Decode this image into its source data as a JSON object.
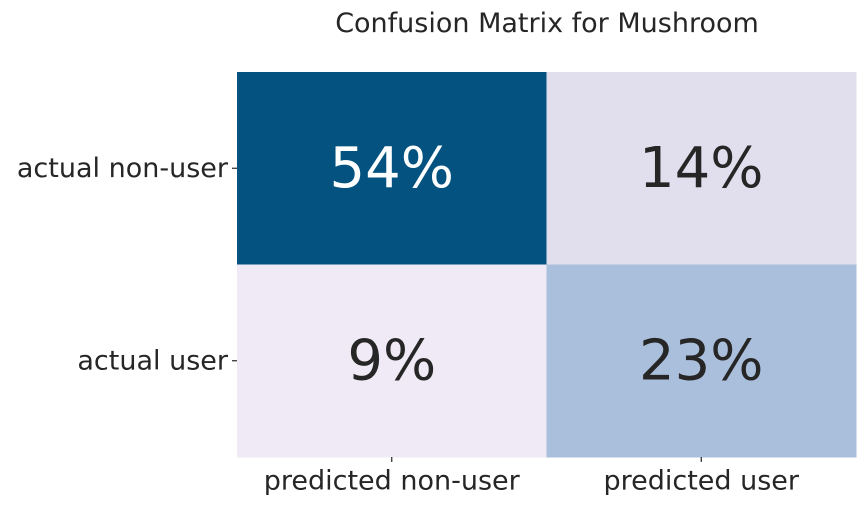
{
  "chart_data": {
    "type": "heatmap",
    "title": "Confusion Matrix for Mushroom",
    "row_labels": [
      "actual non-user",
      "actual user"
    ],
    "col_labels": [
      "predicted non-user",
      "predicted user"
    ],
    "values": [
      [
        54,
        14
      ],
      [
        9,
        23
      ]
    ],
    "cell_text": [
      [
        "54%",
        "14%"
      ],
      [
        "9%",
        "23%"
      ]
    ],
    "unit": "%",
    "colormap": "PuBu",
    "cell_colors": [
      [
        "#03527f",
        "#e1dfed"
      ],
      [
        "#efeaf5",
        "#aabfdc"
      ]
    ],
    "text_colors": [
      [
        "#ffffff",
        "#262626"
      ],
      [
        "#262626",
        "#262626"
      ]
    ],
    "colorbar": false,
    "grid": false
  }
}
